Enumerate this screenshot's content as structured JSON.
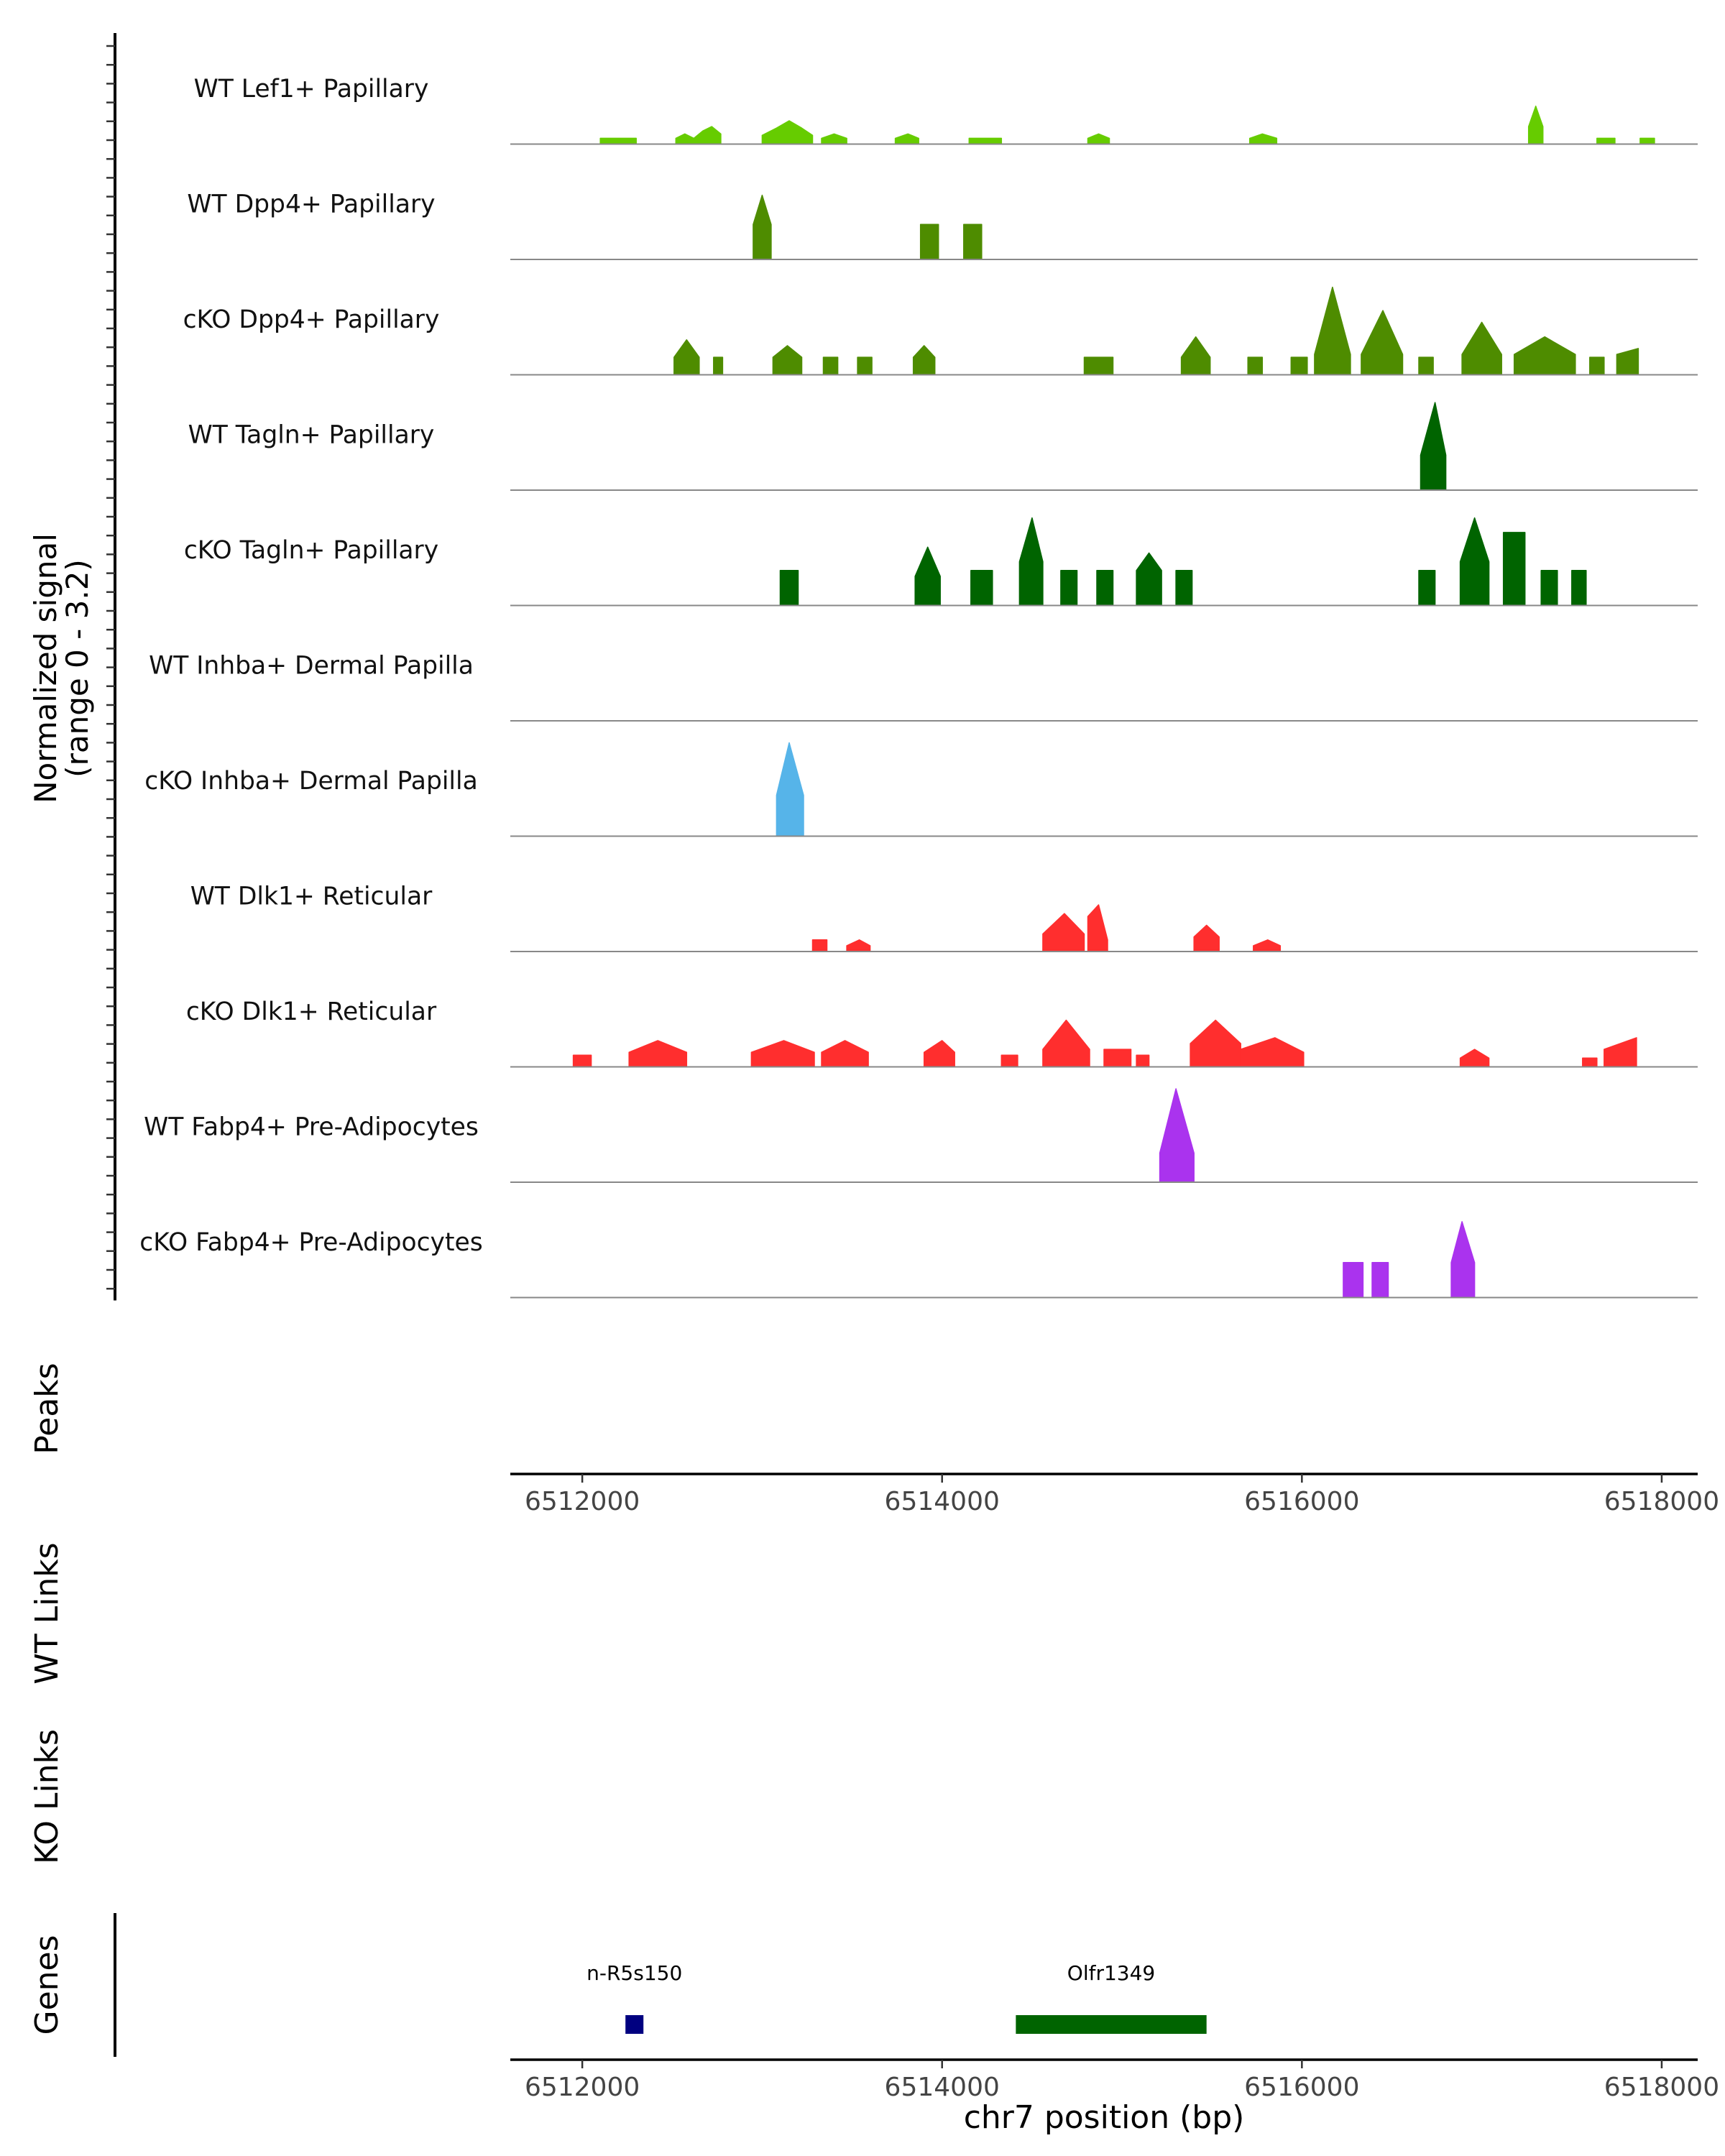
{
  "chart_data": {
    "type": "area",
    "title": "",
    "xlabel": "chr7 position (bp)",
    "y_axis_label": [
      "Normalized signal",
      "(range 0 - 3.2)"
    ],
    "y_range": [
      0,
      3.2
    ],
    "xlim": [
      6511600,
      6518200
    ],
    "x_ticks": [
      {
        "value": 6512000,
        "label": "6512000"
      },
      {
        "value": 6514000,
        "label": "6514000"
      },
      {
        "value": 6516000,
        "label": "6516000"
      },
      {
        "value": 6518000,
        "label": "6518000"
      }
    ],
    "series": [
      {
        "name": "WT Lef1+ Papillary",
        "color": "#66cc00",
        "segments": [
          {
            "x": [
              6512100,
              6512300
            ],
            "y": [
              0.2,
              0.2
            ]
          },
          {
            "x": [
              6512520,
              6512570,
              6512620,
              6512670,
              6512720,
              6512770
            ],
            "y": [
              0.2,
              0.35,
              0.2,
              0.45,
              0.6,
              0.35
            ]
          },
          {
            "x": [
              6513000,
              6513080,
              6513150,
              6513220,
              6513280
            ],
            "y": [
              0.3,
              0.55,
              0.8,
              0.55,
              0.3
            ]
          },
          {
            "x": [
              6513330,
              6513400,
              6513470
            ],
            "y": [
              0.2,
              0.35,
              0.2
            ]
          },
          {
            "x": [
              6513740,
              6513810,
              6513870
            ],
            "y": [
              0.2,
              0.35,
              0.2
            ]
          },
          {
            "x": [
              6514150,
              6514330
            ],
            "y": [
              0.2,
              0.2
            ]
          },
          {
            "x": [
              6514810,
              6514870,
              6514930
            ],
            "y": [
              0.2,
              0.35,
              0.2
            ]
          },
          {
            "x": [
              6515710,
              6515780,
              6515860
            ],
            "y": [
              0.2,
              0.35,
              0.2
            ]
          },
          {
            "x": [
              6517260,
              6517300,
              6517340
            ],
            "y": [
              0.6,
              1.3,
              0.6
            ]
          },
          {
            "x": [
              6517640,
              6517740
            ],
            "y": [
              0.2,
              0.2
            ]
          },
          {
            "x": [
              6517880,
              6517960
            ],
            "y": [
              0.2,
              0.2
            ]
          }
        ]
      },
      {
        "name": "WT Dpp4+ Papillary",
        "color": "#4e8c00",
        "segments": [
          {
            "x": [
              6512950,
              6513000,
              6513050
            ],
            "y": [
              1.2,
              2.2,
              1.2
            ]
          },
          {
            "x": [
              6513880,
              6513980
            ],
            "y": [
              1.2,
              1.2
            ]
          },
          {
            "x": [
              6514120,
              6514220
            ],
            "y": [
              1.2,
              1.2
            ]
          }
        ]
      },
      {
        "name": "cKO Dpp4+ Papillary",
        "color": "#4e8c00",
        "segments": [
          {
            "x": [
              6512510,
              6512580,
              6512650
            ],
            "y": [
              0.6,
              1.2,
              0.6
            ]
          },
          {
            "x": [
              6512730,
              6512780
            ],
            "y": [
              0.6,
              0.6
            ]
          },
          {
            "x": [
              6513060,
              6513140,
              6513220
            ],
            "y": [
              0.6,
              1.0,
              0.6
            ]
          },
          {
            "x": [
              6513340,
              6513420
            ],
            "y": [
              0.6,
              0.6
            ]
          },
          {
            "x": [
              6513530,
              6513610
            ],
            "y": [
              0.6,
              0.6
            ]
          },
          {
            "x": [
              6513840,
              6513900,
              6513960
            ],
            "y": [
              0.6,
              1.0,
              0.6
            ]
          },
          {
            "x": [
              6514790,
              6514950
            ],
            "y": [
              0.6,
              0.6
            ]
          },
          {
            "x": [
              6515330,
              6515410,
              6515490
            ],
            "y": [
              0.6,
              1.3,
              0.6
            ]
          },
          {
            "x": [
              6515700,
              6515780
            ],
            "y": [
              0.6,
              0.6
            ]
          },
          {
            "x": [
              6515940,
              6516030
            ],
            "y": [
              0.6,
              0.6
            ]
          },
          {
            "x": [
              6516070,
              6516170,
              6516270
            ],
            "y": [
              0.7,
              3.0,
              0.7
            ]
          },
          {
            "x": [
              6516330,
              6516450,
              6516560
            ],
            "y": [
              0.7,
              2.2,
              0.7
            ]
          },
          {
            "x": [
              6516650,
              6516730
            ],
            "y": [
              0.6,
              0.6
            ]
          },
          {
            "x": [
              6516890,
              6517000,
              6517110
            ],
            "y": [
              0.7,
              1.8,
              0.7
            ]
          },
          {
            "x": [
              6517180,
              6517350,
              6517520
            ],
            "y": [
              0.7,
              1.3,
              0.7
            ]
          },
          {
            "x": [
              6517600,
              6517680
            ],
            "y": [
              0.6,
              0.6
            ]
          },
          {
            "x": [
              6517750,
              6517870
            ],
            "y": [
              0.7,
              0.9
            ]
          }
        ]
      },
      {
        "name": "WT Tagln+ Papillary",
        "color": "#006400",
        "segments": [
          {
            "x": [
              6516660,
              6516740,
              6516800
            ],
            "y": [
              1.2,
              3.0,
              1.2
            ]
          }
        ]
      },
      {
        "name": "cKO Tagln+ Papillary",
        "color": "#006400",
        "segments": [
          {
            "x": [
              6513100,
              6513200
            ],
            "y": [
              1.2,
              1.2
            ]
          },
          {
            "x": [
              6513850,
              6513920,
              6513990
            ],
            "y": [
              1.0,
              2.0,
              1.0
            ]
          },
          {
            "x": [
              6514160,
              6514280
            ],
            "y": [
              1.2,
              1.2
            ]
          },
          {
            "x": [
              6514430,
              6514500,
              6514560
            ],
            "y": [
              1.5,
              3.0,
              1.5
            ]
          },
          {
            "x": [
              6514660,
              6514750
            ],
            "y": [
              1.2,
              1.2
            ]
          },
          {
            "x": [
              6514860,
              6514950
            ],
            "y": [
              1.2,
              1.2
            ]
          },
          {
            "x": [
              6515080,
              6515150,
              6515220
            ],
            "y": [
              1.2,
              1.8,
              1.2
            ]
          },
          {
            "x": [
              6515300,
              6515390
            ],
            "y": [
              1.2,
              1.2
            ]
          },
          {
            "x": [
              6516650,
              6516740
            ],
            "y": [
              1.2,
              1.2
            ]
          },
          {
            "x": [
              6516880,
              6516960,
              6517040
            ],
            "y": [
              1.5,
              3.0,
              1.5
            ]
          },
          {
            "x": [
              6517120,
              6517240
            ],
            "y": [
              2.5,
              2.5
            ]
          },
          {
            "x": [
              6517330,
              6517420
            ],
            "y": [
              1.2,
              1.2
            ]
          },
          {
            "x": [
              6517500,
              6517580
            ],
            "y": [
              1.2,
              1.2
            ]
          }
        ]
      },
      {
        "name": "WT Inhba+ Dermal Papilla",
        "color": "#56b4e9",
        "segments": []
      },
      {
        "name": "cKO Inhba+ Dermal Papilla",
        "color": "#56b4e9",
        "segments": [
          {
            "x": [
              6513080,
              6513150,
              6513230
            ],
            "y": [
              1.4,
              3.2,
              1.4
            ]
          }
        ]
      },
      {
        "name": "WT Dlk1+ Reticular",
        "color": "#ff2e2e",
        "segments": [
          {
            "x": [
              6513280,
              6513360
            ],
            "y": [
              0.4,
              0.4
            ]
          },
          {
            "x": [
              6513470,
              6513540,
              6513600
            ],
            "y": [
              0.2,
              0.4,
              0.2
            ]
          },
          {
            "x": [
              6514560,
              6514680,
              6514790
            ],
            "y": [
              0.6,
              1.3,
              0.6
            ]
          },
          {
            "x": [
              6514810,
              6514870,
              6514920
            ],
            "y": [
              1.2,
              1.6,
              0.4
            ]
          },
          {
            "x": [
              6515400,
              6515470,
              6515540
            ],
            "y": [
              0.5,
              0.9,
              0.5
            ]
          },
          {
            "x": [
              6515730,
              6515810,
              6515880
            ],
            "y": [
              0.2,
              0.4,
              0.2
            ]
          }
        ]
      },
      {
        "name": "cKO Dlk1+ Reticular",
        "color": "#ff2e2e",
        "segments": [
          {
            "x": [
              6511950,
              6512050
            ],
            "y": [
              0.4,
              0.4
            ]
          },
          {
            "x": [
              6512260,
              6512420,
              6512580
            ],
            "y": [
              0.5,
              0.9,
              0.5
            ]
          },
          {
            "x": [
              6512940,
              6513120,
              6513290
            ],
            "y": [
              0.5,
              0.9,
              0.5
            ]
          },
          {
            "x": [
              6513330,
              6513460,
              6513590
            ],
            "y": [
              0.5,
              0.9,
              0.5
            ]
          },
          {
            "x": [
              6513900,
              6514000,
              6514070
            ],
            "y": [
              0.5,
              0.9,
              0.5
            ]
          },
          {
            "x": [
              6514330,
              6514420
            ],
            "y": [
              0.4,
              0.4
            ]
          },
          {
            "x": [
              6514560,
              6514690,
              6514820
            ],
            "y": [
              0.6,
              1.6,
              0.6
            ]
          },
          {
            "x": [
              6514900,
              6515050
            ],
            "y": [
              0.6,
              0.6
            ]
          },
          {
            "x": [
              6515080,
              6515150
            ],
            "y": [
              0.4,
              0.4
            ]
          },
          {
            "x": [
              6515380,
              6515520,
              6515660
            ],
            "y": [
              0.8,
              1.6,
              0.8
            ]
          },
          {
            "x": [
              6515660,
              6515850,
              6516010
            ],
            "y": [
              0.6,
              1.0,
              0.5
            ]
          },
          {
            "x": [
              6516880,
              6516960,
              6517040
            ],
            "y": [
              0.3,
              0.6,
              0.3
            ]
          },
          {
            "x": [
              6517560,
              6517640
            ],
            "y": [
              0.3,
              0.3
            ]
          },
          {
            "x": [
              6517680,
              6517860
            ],
            "y": [
              0.6,
              1.0
            ]
          }
        ]
      },
      {
        "name": "WT Fabp4+ Pre-Adipocytes",
        "color": "#aa33ee",
        "segments": [
          {
            "x": [
              6515210,
              6515300,
              6515400
            ],
            "y": [
              1.0,
              3.2,
              1.0
            ]
          }
        ]
      },
      {
        "name": "cKO Fabp4+ Pre-Adipocytes",
        "color": "#aa33ee",
        "segments": [
          {
            "x": [
              6516230,
              6516340
            ],
            "y": [
              1.2,
              1.2
            ]
          },
          {
            "x": [
              6516390,
              6516480
            ],
            "y": [
              1.2,
              1.2
            ]
          },
          {
            "x": [
              6516830,
              6516890,
              6516960
            ],
            "y": [
              1.2,
              2.6,
              1.2
            ]
          }
        ]
      }
    ],
    "tracks": [
      {
        "name": "Peaks",
        "items": []
      },
      {
        "name": "WT Links",
        "items": []
      },
      {
        "name": "KO Links",
        "items": []
      }
    ],
    "genes": {
      "track_label": "Genes",
      "items": [
        {
          "name": "n-R5s150",
          "start": 6512240,
          "end": 6512340,
          "color": "#000080"
        },
        {
          "name": "Olfr1349",
          "start": 6514410,
          "end": 6515470,
          "color": "#006400"
        }
      ]
    }
  }
}
